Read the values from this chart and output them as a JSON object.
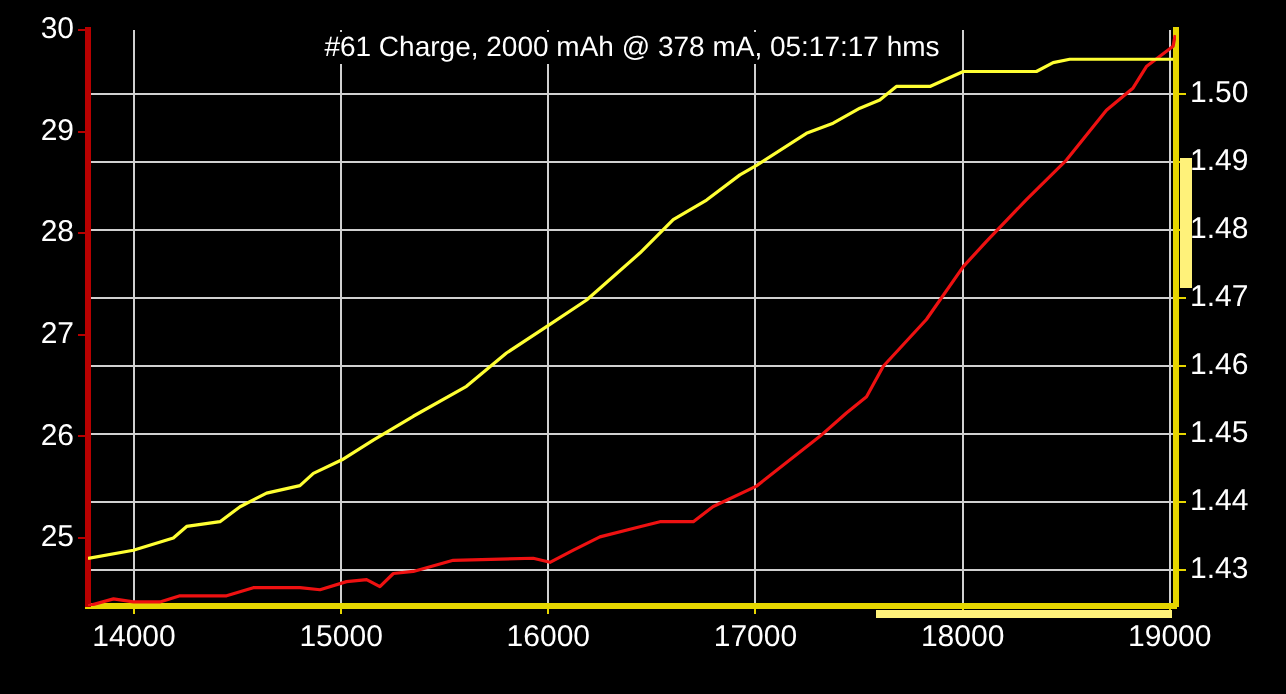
{
  "chart_data": {
    "type": "line",
    "title": "#61 Charge, 2000 mAh @ 378 mA, 05:17:17 hms",
    "xlim": [
      13778,
      19030
    ],
    "xticks": [
      14000,
      15000,
      16000,
      17000,
      18000,
      19000
    ],
    "ylim": [
      24.33,
      30
    ],
    "yticks": [
      25,
      26,
      27,
      28,
      29,
      30
    ],
    "y2lim": [
      1.4247,
      1.5094
    ],
    "y2ticks": [
      1.43,
      1.44,
      1.45,
      1.46,
      1.47,
      1.48,
      1.49,
      {
        "value": 1.5,
        "label": "1.50"
      }
    ],
    "grid": true,
    "legend": false,
    "marker": "none",
    "line_style": "solid",
    "series": [
      {
        "color": "#ffff33",
        "axis": "y2",
        "x": [
          13778,
          13997,
          14190,
          14254,
          14415,
          14512,
          14640,
          14801,
          14866,
          15004,
          15155,
          15348,
          15605,
          15798,
          16008,
          16185,
          16442,
          16603,
          16764,
          16925,
          17005,
          17246,
          17375,
          17504,
          17600,
          17680,
          17842,
          18003,
          18356,
          18437,
          18517,
          19016
        ],
        "values": [
          1.4317,
          1.4329,
          1.4347,
          1.4364,
          1.4371,
          1.4393,
          1.4413,
          1.4424,
          1.4442,
          1.4462,
          1.4491,
          1.4526,
          1.457,
          1.4619,
          1.4661,
          1.4697,
          1.4766,
          1.4815,
          1.4844,
          1.4881,
          1.4895,
          1.4942,
          1.4957,
          1.4979,
          1.4991,
          1.5011,
          1.5011,
          1.5033,
          1.5033,
          1.5046,
          1.5051,
          1.5051
        ]
      },
      {
        "color": "#ee1111",
        "x": [
          13778,
          13901,
          13997,
          14125,
          14222,
          14447,
          14576,
          14801,
          14898,
          15026,
          15123,
          15187,
          15252,
          15348,
          15541,
          15927,
          16008,
          16121,
          16249,
          16442,
          16539,
          16700,
          16796,
          17005,
          17311,
          17439,
          17536,
          17617,
          17825,
          18003,
          18115,
          18308,
          18501,
          18694,
          18823,
          18887,
          19016,
          19026
        ],
        "values": [
          24.33,
          24.4,
          24.37,
          24.37,
          24.43,
          24.43,
          24.51,
          24.51,
          24.49,
          24.57,
          24.59,
          24.52,
          24.65,
          24.67,
          24.78,
          24.8,
          24.76,
          24.88,
          25.01,
          25.11,
          25.16,
          25.16,
          25.31,
          25.51,
          26.0,
          26.23,
          26.39,
          26.69,
          27.15,
          27.67,
          27.92,
          28.33,
          28.72,
          29.21,
          29.43,
          29.64,
          29.84,
          29.95
        ]
      }
    ]
  }
}
